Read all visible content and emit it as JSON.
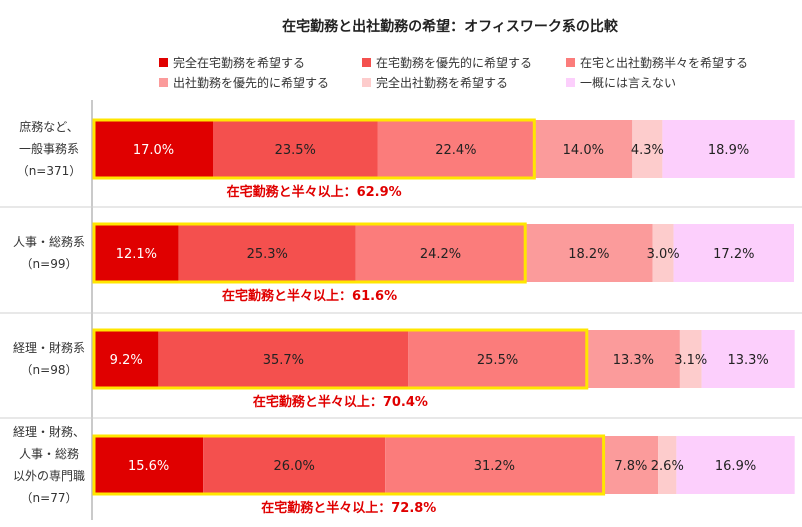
{
  "chart_data": {
    "type": "bar",
    "orientation": "horizontal",
    "stacked": true,
    "percent": true,
    "title": "在宅勤務と出社勤務の希望：オフィスワーク系の比較",
    "legend_position": "top",
    "grid": false,
    "xlim": [
      0,
      100
    ],
    "categories": [
      "庶務など、一般事務系（n=371）",
      "人事・総務系（n=99）",
      "経理・財務系（n=98）",
      "経理・財務、人事・総務以外の専門職（n=77）"
    ],
    "category_lines": [
      [
        "庶務など、",
        "一般事務系",
        "（n=371）"
      ],
      [
        "人事・総務系",
        "（n=99）"
      ],
      [
        "経理・財務系",
        "（n=98）"
      ],
      [
        "経理・財務、",
        "人事・総務",
        "以外の専門職",
        "（n=77）"
      ]
    ],
    "series": [
      {
        "name": "完全在宅勤務を希望する",
        "color": "#e00000",
        "values": [
          17.0,
          12.1,
          9.2,
          15.6
        ]
      },
      {
        "name": "在宅勤務を優先的に希望する",
        "color": "#f4504e",
        "values": [
          23.5,
          25.3,
          35.7,
          26.0
        ]
      },
      {
        "name": "在宅と出社勤務半々を希望する",
        "color": "#fb7c7b",
        "values": [
          22.4,
          24.2,
          25.5,
          31.2
        ]
      },
      {
        "name": "出社勤務を優先的に希望する",
        "color": "#fb9b9b",
        "values": [
          14.0,
          18.2,
          13.3,
          7.8
        ]
      },
      {
        "name": "完全出社勤務を希望する",
        "color": "#fdcccc",
        "values": [
          4.3,
          3.0,
          3.1,
          2.6
        ]
      },
      {
        "name": "一概には言えない",
        "color": "#fccffc",
        "values": [
          18.9,
          17.2,
          13.3,
          16.9
        ]
      }
    ],
    "value_labels": [
      [
        "17.0%",
        "23.5%",
        "22.4%",
        "14.0%",
        "4.3%",
        "18.9%"
      ],
      [
        "12.1%",
        "25.3%",
        "24.2%",
        "18.2%",
        "3.0%",
        "17.2%"
      ],
      [
        "9.2%",
        "35.7%",
        "25.5%",
        "13.3%",
        "3.1%",
        "13.3%"
      ],
      [
        "15.6%",
        "26.0%",
        "31.2%",
        "7.8%",
        "2.6%",
        "16.9%"
      ]
    ],
    "highlight": {
      "series_count": 3,
      "box_color": "#ffe600",
      "text_color": "#e00000",
      "labels": [
        "在宅勤務と半々以上：62.9%",
        "在宅勤務と半々以上：61.6%",
        "在宅勤務と半々以上：70.4%",
        "在宅勤務と半々以上：72.8%"
      ]
    }
  }
}
